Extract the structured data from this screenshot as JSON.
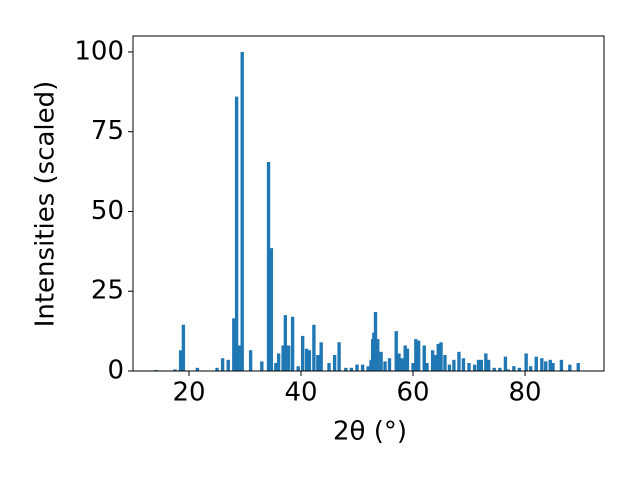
{
  "chart_data": {
    "type": "bar",
    "xlabel": "2θ (°)",
    "ylabel": "Intensities (scaled)",
    "color": "#1f77b4",
    "bar_width": 0.6,
    "xlim": [
      10,
      94.1
    ],
    "xticks": [
      20,
      40,
      60,
      80
    ],
    "ylim": [
      0,
      105
    ],
    "yticks": [
      0,
      25,
      50,
      75,
      100
    ],
    "x": [
      14.1,
      17.5,
      18.5,
      19,
      21.5,
      25,
      26,
      27,
      28,
      28.5,
      29,
      29.5,
      31,
      33,
      34.2,
      34.7,
      35.5,
      36,
      36.8,
      37.2,
      37.8,
      38.5,
      39.5,
      40.3,
      41,
      41.5,
      42.3,
      43,
      43.6,
      45,
      46,
      46.8,
      48,
      49,
      50,
      51,
      52,
      52.5,
      52.8,
      53,
      53.3,
      53.7,
      54.3,
      55,
      55.8,
      57,
      57.5,
      58,
      58.6,
      59,
      60,
      60.5,
      61,
      62,
      62.5,
      63.5,
      64,
      64.5,
      65,
      65.7,
      66.5,
      67.3,
      68.2,
      69,
      70,
      71,
      71.7,
      72.2,
      73,
      73.5,
      74.5,
      75.5,
      76.5,
      77,
      78,
      79,
      80.2,
      81,
      82,
      83,
      83.7,
      84.5,
      85,
      86.5,
      88,
      89.5
    ],
    "values": [
      0.3,
      0.5,
      6.5,
      14.5,
      1,
      1,
      4,
      3.5,
      16.5,
      86,
      8,
      100,
      6.5,
      3,
      65.5,
      38.5,
      2.5,
      5.5,
      8,
      17.5,
      8,
      17,
      1.5,
      11,
      7,
      6.5,
      14.5,
      5,
      9,
      2.5,
      5,
      9,
      1,
      1,
      2,
      2,
      1.5,
      3.5,
      10,
      12,
      18.5,
      10,
      6,
      3,
      4,
      12.5,
      5.5,
      4,
      8,
      7,
      2.5,
      10,
      9.5,
      8,
      2.5,
      6.5,
      5,
      8.5,
      9,
      5,
      2,
      3.5,
      6,
      4,
      2.5,
      2,
      3.5,
      3.5,
      5.5,
      3.5,
      1,
      1,
      4.5,
      0.5,
      1.5,
      1,
      5.5,
      1.5,
      4.5,
      4,
      3,
      3.5,
      2.5,
      3.5,
      2,
      2.5
    ]
  }
}
